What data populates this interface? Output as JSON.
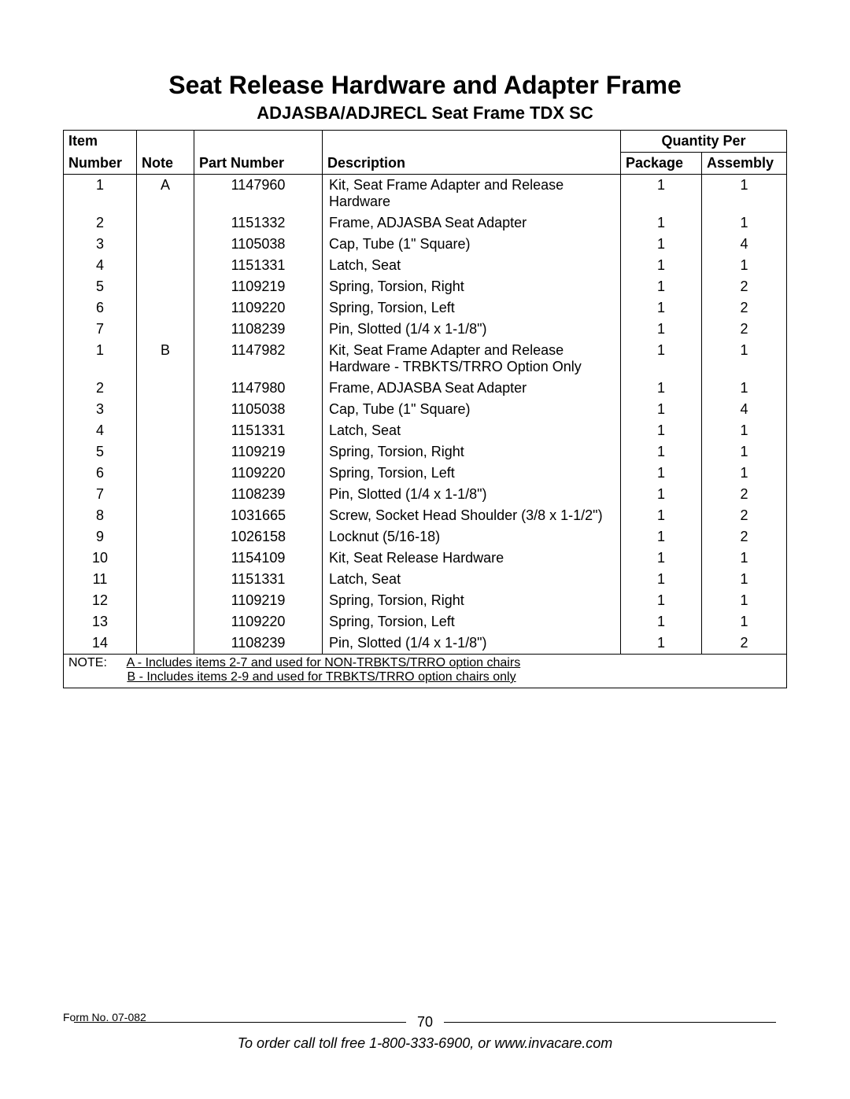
{
  "title": "Seat Release Hardware and Adapter Frame",
  "subtitle": "ADJASBA/ADJRECL Seat Frame TDX SC",
  "columns": {
    "item_top": "Item",
    "item": "Number",
    "note": "Note",
    "part": "Part Number",
    "desc": "Description",
    "qty_group": "Quantity Per",
    "pkg": "Package",
    "asm": "Assembly"
  },
  "rows": [
    {
      "item": "1",
      "note": "A",
      "part": "1147960",
      "desc": "Kit, Seat Frame Adapter and Release Hardware",
      "pkg": "1",
      "asm": "1"
    },
    {
      "item": "2",
      "note": "",
      "part": "1151332",
      "desc": "Frame, ADJASBA Seat Adapter",
      "pkg": "1",
      "asm": "1"
    },
    {
      "item": "3",
      "note": "",
      "part": "1105038",
      "desc": "Cap, Tube (1\" Square)",
      "pkg": "1",
      "asm": "4"
    },
    {
      "item": "4",
      "note": "",
      "part": "1151331",
      "desc": "Latch, Seat",
      "pkg": "1",
      "asm": "1"
    },
    {
      "item": "5",
      "note": "",
      "part": "1109219",
      "desc": "Spring, Torsion, Right",
      "pkg": "1",
      "asm": "2"
    },
    {
      "item": "6",
      "note": "",
      "part": "1109220",
      "desc": "Spring, Torsion, Left",
      "pkg": "1",
      "asm": "2"
    },
    {
      "item": "7",
      "note": "",
      "part": "1108239",
      "desc": "Pin, Slotted (1/4 x 1-1/8\")",
      "pkg": "1",
      "asm": "2"
    },
    {
      "item": "1",
      "note": "B",
      "part": "1147982",
      "desc": "Kit, Seat Frame Adapter and Release Hardware - TRBKTS/TRRO Option Only",
      "pkg": "1",
      "asm": "1"
    },
    {
      "item": "2",
      "note": "",
      "part": "1147980",
      "desc": "Frame, ADJASBA Seat Adapter",
      "pkg": "1",
      "asm": "1"
    },
    {
      "item": "3",
      "note": "",
      "part": "1105038",
      "desc": "Cap, Tube (1\" Square)",
      "pkg": "1",
      "asm": "4"
    },
    {
      "item": "4",
      "note": "",
      "part": "1151331",
      "desc": "Latch, Seat",
      "pkg": "1",
      "asm": "1"
    },
    {
      "item": "5",
      "note": "",
      "part": "1109219",
      "desc": "Spring, Torsion, Right",
      "pkg": "1",
      "asm": "1"
    },
    {
      "item": "6",
      "note": "",
      "part": "1109220",
      "desc": "Spring, Torsion, Left",
      "pkg": "1",
      "asm": "1"
    },
    {
      "item": "7",
      "note": "",
      "part": "1108239",
      "desc": "Pin, Slotted (1/4 x 1-1/8\")",
      "pkg": "1",
      "asm": "2"
    },
    {
      "item": "8",
      "note": "",
      "part": "1031665",
      "desc": "Screw, Socket Head Shoulder (3/8 x 1-1/2\")",
      "pkg": "1",
      "asm": "2"
    },
    {
      "item": "9",
      "note": "",
      "part": "1026158",
      "desc": "Locknut (5/16-18)",
      "pkg": "1",
      "asm": "2"
    },
    {
      "item": "10",
      "note": "",
      "part": "1154109",
      "desc": "Kit, Seat Release Hardware",
      "pkg": "1",
      "asm": "1"
    },
    {
      "item": "11",
      "note": "",
      "part": "1151331",
      "desc": "Latch, Seat",
      "pkg": "1",
      "asm": "1"
    },
    {
      "item": "12",
      "note": "",
      "part": "1109219",
      "desc": "Spring, Torsion, Right",
      "pkg": "1",
      "asm": "1"
    },
    {
      "item": "13",
      "note": "",
      "part": "1109220",
      "desc": "Spring, Torsion, Left",
      "pkg": "1",
      "asm": "1"
    },
    {
      "item": "14",
      "note": "",
      "part": "1108239",
      "desc": "Pin, Slotted (1/4 x 1-1/8\")",
      "pkg": "1",
      "asm": "2"
    }
  ],
  "note_label": "NOTE:",
  "note_a": "A - Includes items 2-7 and used for NON-TRBKTS/TRRO option chairs",
  "note_b": "B - Includes items 2-9 and used for TRBKTS/TRRO option chairs only",
  "page_number": "70",
  "order_text": "To order call toll free 1-800-333-6900, or www.invacare.com",
  "form_no": "Form No. 07-082"
}
